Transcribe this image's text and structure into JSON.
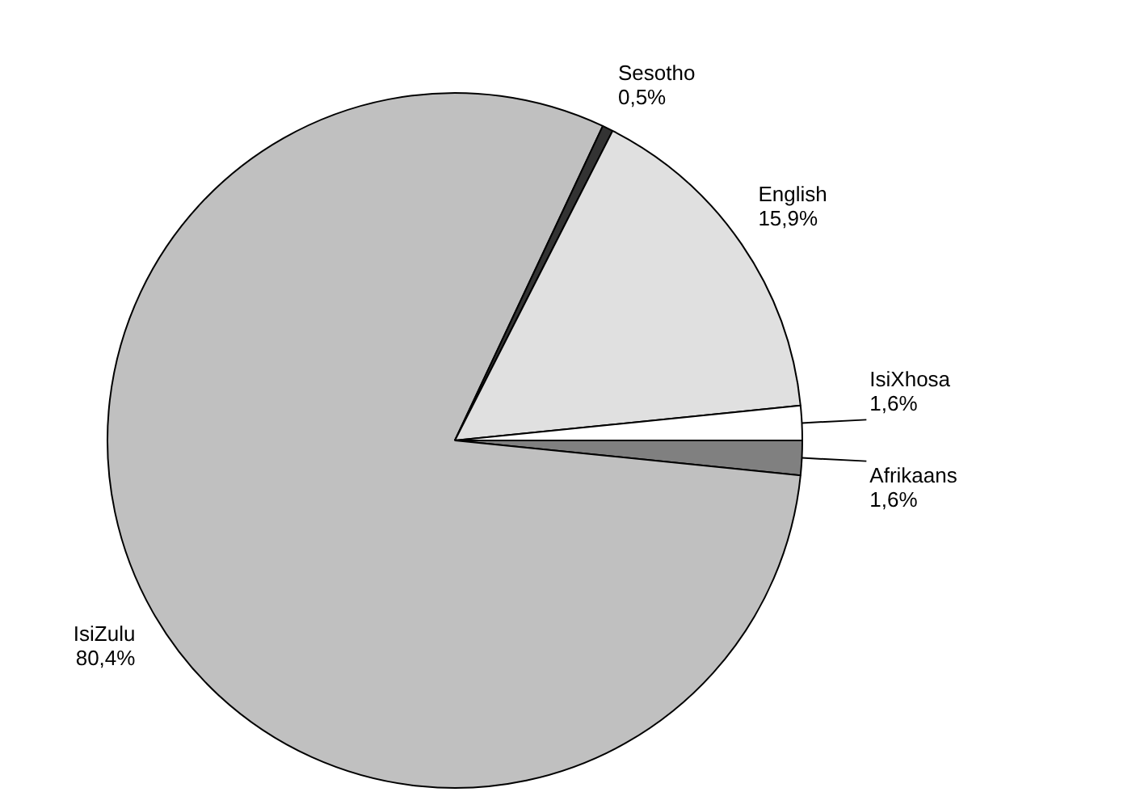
{
  "chart_data": {
    "type": "pie",
    "categories": [
      "Afrikaans",
      "IsiZulu",
      "Sesotho",
      "English",
      "IsiXhosa"
    ],
    "values": [
      1.6,
      80.4,
      0.5,
      15.9,
      1.6
    ],
    "value_labels": [
      "1,6%",
      "80,4%",
      "0,5%",
      "15,9%",
      "1,6%"
    ],
    "colors": [
      "#808080",
      "#c0c0c0",
      "#333333",
      "#e0e0e0",
      "#ffffff"
    ],
    "legend": false
  }
}
